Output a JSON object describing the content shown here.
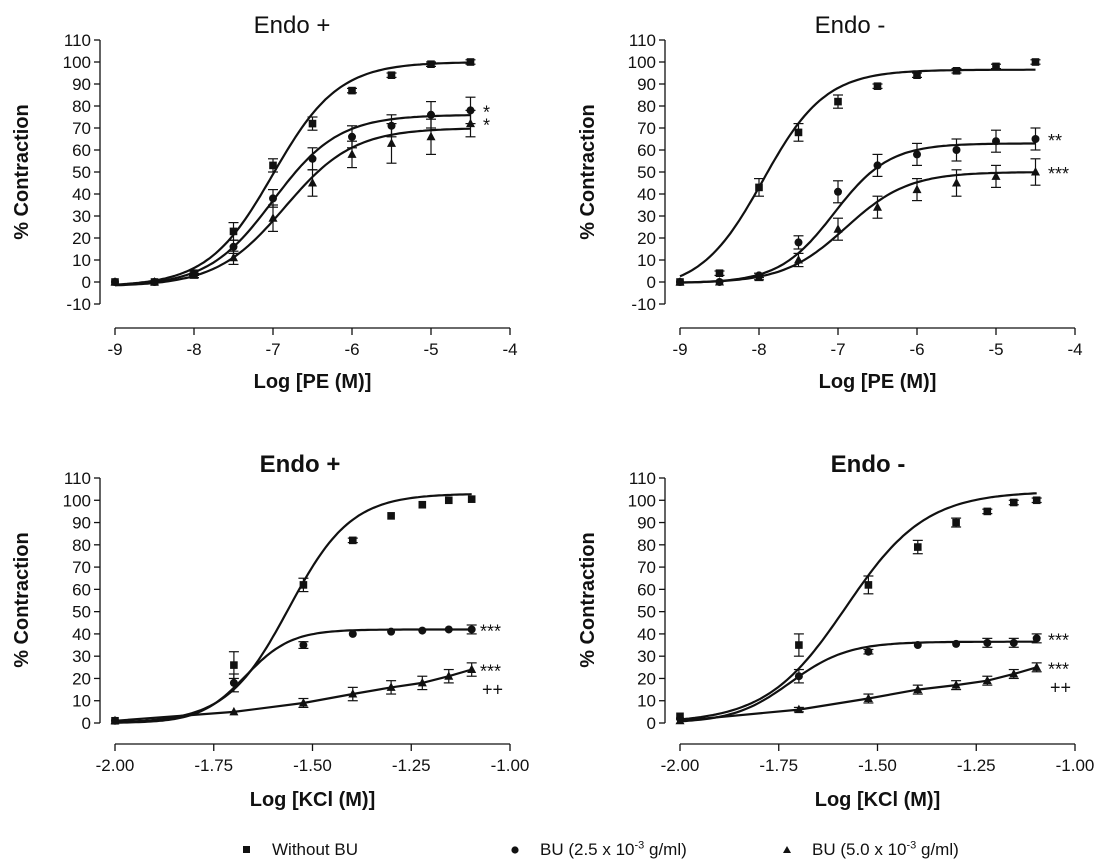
{
  "colors": {
    "ink": "#111111",
    "background": "#ffffff"
  },
  "legend": [
    {
      "marker": "square",
      "label": "Without BU"
    },
    {
      "marker": "circle",
      "label_pre": "BU (2.5 x 10",
      "label_exp": "-3",
      "label_post": " g/ml)"
    },
    {
      "marker": "triangle",
      "label_pre": "BU (5.0 x 10",
      "label_exp": "-3",
      "label_post": " g/ml)"
    }
  ],
  "chart_data": [
    {
      "type": "line",
      "title": "Endo +",
      "title_bold": false,
      "xlabel": "Log [PE (M)]",
      "ylabel": "% Contraction",
      "xlim": [
        -9,
        -4
      ],
      "ylim": [
        -10,
        110
      ],
      "xticks": [
        -9,
        -8,
        -7,
        -6,
        -5,
        -4
      ],
      "xtick_labels": [
        "-9",
        "-8",
        "-7",
        "-6",
        "-5",
        "-4"
      ],
      "yticks": [
        -10,
        0,
        10,
        20,
        30,
        40,
        50,
        60,
        70,
        80,
        90,
        100,
        110
      ],
      "grid": false,
      "x": [
        -9,
        -8.5,
        -8,
        -7.5,
        -7,
        -6.5,
        -6,
        -5.5,
        -5,
        -4.5
      ],
      "series": [
        {
          "name": "Without BU",
          "marker": "square",
          "values": [
            0,
            0,
            4,
            23,
            53,
            72,
            87,
            94,
            99,
            100
          ],
          "errors": [
            0,
            0,
            1,
            4,
            3,
            3,
            1,
            1,
            1,
            1
          ],
          "fit": {
            "bottom": -2,
            "top": 100,
            "logec50": -7.0,
            "hill": 1.05
          },
          "annotation": ""
        },
        {
          "name": "BU (2.5 x 10-3 g/ml)",
          "marker": "circle",
          "values": [
            0,
            0,
            4,
            16,
            38,
            56,
            66,
            71,
            76,
            78
          ],
          "errors": [
            0,
            0,
            1,
            3,
            4,
            5,
            5,
            5,
            6,
            6
          ],
          "fit": {
            "bottom": -2,
            "top": 76,
            "logec50": -7.0,
            "hill": 1.05
          },
          "annotation": "*"
        },
        {
          "name": "BU (5.0 x 10-3 g/ml)",
          "marker": "triangle",
          "values": [
            0,
            0,
            3,
            11,
            29,
            45,
            58,
            63,
            66,
            72
          ],
          "errors": [
            0,
            0,
            1,
            3,
            6,
            6,
            6,
            9,
            8,
            6
          ],
          "fit": {
            "bottom": -2,
            "top": 70,
            "logec50": -6.85,
            "hill": 1.0
          },
          "annotation": "*"
        }
      ]
    },
    {
      "type": "line",
      "title": "Endo -",
      "title_bold": false,
      "xlabel": "Log [PE (M)]",
      "ylabel": "% Contraction",
      "xlim": [
        -9,
        -4
      ],
      "ylim": [
        -10,
        110
      ],
      "xticks": [
        -9,
        -8,
        -7,
        -6,
        -5,
        -4
      ],
      "xtick_labels": [
        "-9",
        "-8",
        "-7",
        "-6",
        "-5",
        "-4"
      ],
      "yticks": [
        -10,
        0,
        10,
        20,
        30,
        40,
        50,
        60,
        70,
        80,
        90,
        100,
        110
      ],
      "grid": false,
      "x": [
        -9,
        -8.5,
        -8,
        -7.5,
        -7,
        -6.5,
        -6,
        -5.5,
        -5,
        -4.5
      ],
      "series": [
        {
          "name": "Without BU",
          "marker": "square",
          "values": [
            0,
            4,
            43,
            68,
            82,
            89,
            94,
            96,
            98,
            100
          ],
          "errors": [
            0,
            1,
            4,
            4,
            3,
            1,
            1,
            1,
            1,
            1
          ],
          "fit": {
            "bottom": -4,
            "top": 96.5,
            "logec50": -7.95,
            "hill": 1.1
          },
          "annotation": ""
        },
        {
          "name": "BU (2.5 x 10-3 g/ml)",
          "marker": "circle",
          "values": [
            0,
            0,
            3,
            18,
            41,
            53,
            58,
            60,
            64,
            65
          ],
          "errors": [
            0,
            0,
            1,
            3,
            5,
            5,
            5,
            5,
            5,
            5
          ],
          "fit": {
            "bottom": -0.5,
            "top": 63,
            "logec50": -7.05,
            "hill": 1.25
          },
          "annotation": "**"
        },
        {
          "name": "BU (5.0 x 10-3 g/ml)",
          "marker": "triangle",
          "values": [
            0,
            0,
            2,
            10,
            24,
            34,
            42,
            45,
            48,
            50
          ],
          "errors": [
            0,
            0,
            1,
            3,
            5,
            5,
            5,
            6,
            5,
            6
          ],
          "fit": {
            "bottom": -0.5,
            "top": 50,
            "logec50": -6.9,
            "hill": 1.1
          },
          "annotation": "***"
        }
      ]
    },
    {
      "type": "line",
      "title": "Endo +",
      "title_bold": true,
      "xlabel": "Log [KCl (M)]",
      "ylabel": "% Contraction",
      "xlim": [
        -2,
        -1
      ],
      "ylim": [
        0,
        110
      ],
      "xticks": [
        -2,
        -1.75,
        -1.5,
        -1.25,
        -1
      ],
      "xtick_labels": [
        "-2.00",
        "-1.75",
        "-1.50",
        "-1.25",
        "-1.00"
      ],
      "yticks": [
        0,
        10,
        20,
        30,
        40,
        50,
        60,
        70,
        80,
        90,
        100,
        110
      ],
      "grid": false,
      "x": [
        -2.0,
        -1.699,
        -1.523,
        -1.398,
        -1.301,
        -1.222,
        -1.155,
        -1.097
      ],
      "series": [
        {
          "name": "Without BU",
          "marker": "square",
          "values": [
            1,
            26,
            62,
            82,
            93,
            98,
            100,
            100.5
          ],
          "errors": [
            0,
            6,
            3,
            1,
            0.5,
            0.5,
            0.5,
            0.5
          ],
          "fit": {
            "bottom": 0,
            "top": 103,
            "logec50": -1.56,
            "hill": 5.5
          },
          "annotation": "",
          "annotation2": ""
        },
        {
          "name": "BU (2.5 x 10-3 g/ml)",
          "marker": "circle",
          "values": [
            1,
            18,
            35,
            40,
            41,
            41.5,
            42,
            42
          ],
          "errors": [
            0,
            4,
            1.5,
            0.5,
            0.5,
            0.5,
            0.5,
            2
          ],
          "fit": {
            "bottom": 0,
            "top": 42,
            "logec50": -1.67,
            "hill": 7.5
          },
          "annotation": "***",
          "annotation2": ""
        },
        {
          "name": "BU (5.0 x 10-3 g/ml)",
          "marker": "triangle",
          "values": [
            1,
            5,
            9,
            13,
            16,
            18,
            21,
            24
          ],
          "errors": [
            0,
            0.5,
            2,
            3,
            3,
            3,
            3,
            3
          ],
          "fit": {
            "linear": true
          },
          "annotation": "***",
          "annotation2": "++"
        }
      ]
    },
    {
      "type": "line",
      "title": "Endo -",
      "title_bold": true,
      "xlabel": "Log [KCl (M)]",
      "ylabel": "% Contraction",
      "xlim": [
        -2,
        -1
      ],
      "ylim": [
        0,
        110
      ],
      "xticks": [
        -2,
        -1.75,
        -1.5,
        -1.25,
        -1
      ],
      "xtick_labels": [
        "-2.00",
        "-1.75",
        "-1.50",
        "-1.25",
        "-1.00"
      ],
      "yticks": [
        0,
        10,
        20,
        30,
        40,
        50,
        60,
        70,
        80,
        90,
        100,
        110
      ],
      "grid": false,
      "x": [
        -2.0,
        -1.699,
        -1.523,
        -1.398,
        -1.301,
        -1.222,
        -1.155,
        -1.097
      ],
      "series": [
        {
          "name": "Without BU",
          "marker": "square",
          "values": [
            3,
            35,
            62,
            79,
            90,
            95,
            99,
            100
          ],
          "errors": [
            0,
            5,
            4,
            3,
            2,
            1,
            1,
            1
          ],
          "fit": {
            "bottom": 0,
            "top": 104,
            "logec50": -1.58,
            "hill": 4.3
          },
          "annotation": "",
          "annotation2": ""
        },
        {
          "name": "BU (2.5 x 10-3 g/ml)",
          "marker": "circle",
          "values": [
            2,
            21,
            32,
            35,
            35.5,
            36,
            36,
            38
          ],
          "errors": [
            0,
            3,
            1,
            0.5,
            0.5,
            2,
            2,
            2
          ],
          "fit": {
            "bottom": 0,
            "top": 36.5,
            "logec50": -1.72,
            "hill": 6.0
          },
          "annotation": "***",
          "annotation2": ""
        },
        {
          "name": "BU (5.0 x 10-3 g/ml)",
          "marker": "triangle",
          "values": [
            1,
            6,
            11,
            15,
            17,
            19,
            22,
            25
          ],
          "errors": [
            0,
            1,
            2,
            2,
            2,
            2,
            2,
            2
          ],
          "fit": {
            "linear": true
          },
          "annotation": "***",
          "annotation2": "++"
        }
      ]
    }
  ]
}
